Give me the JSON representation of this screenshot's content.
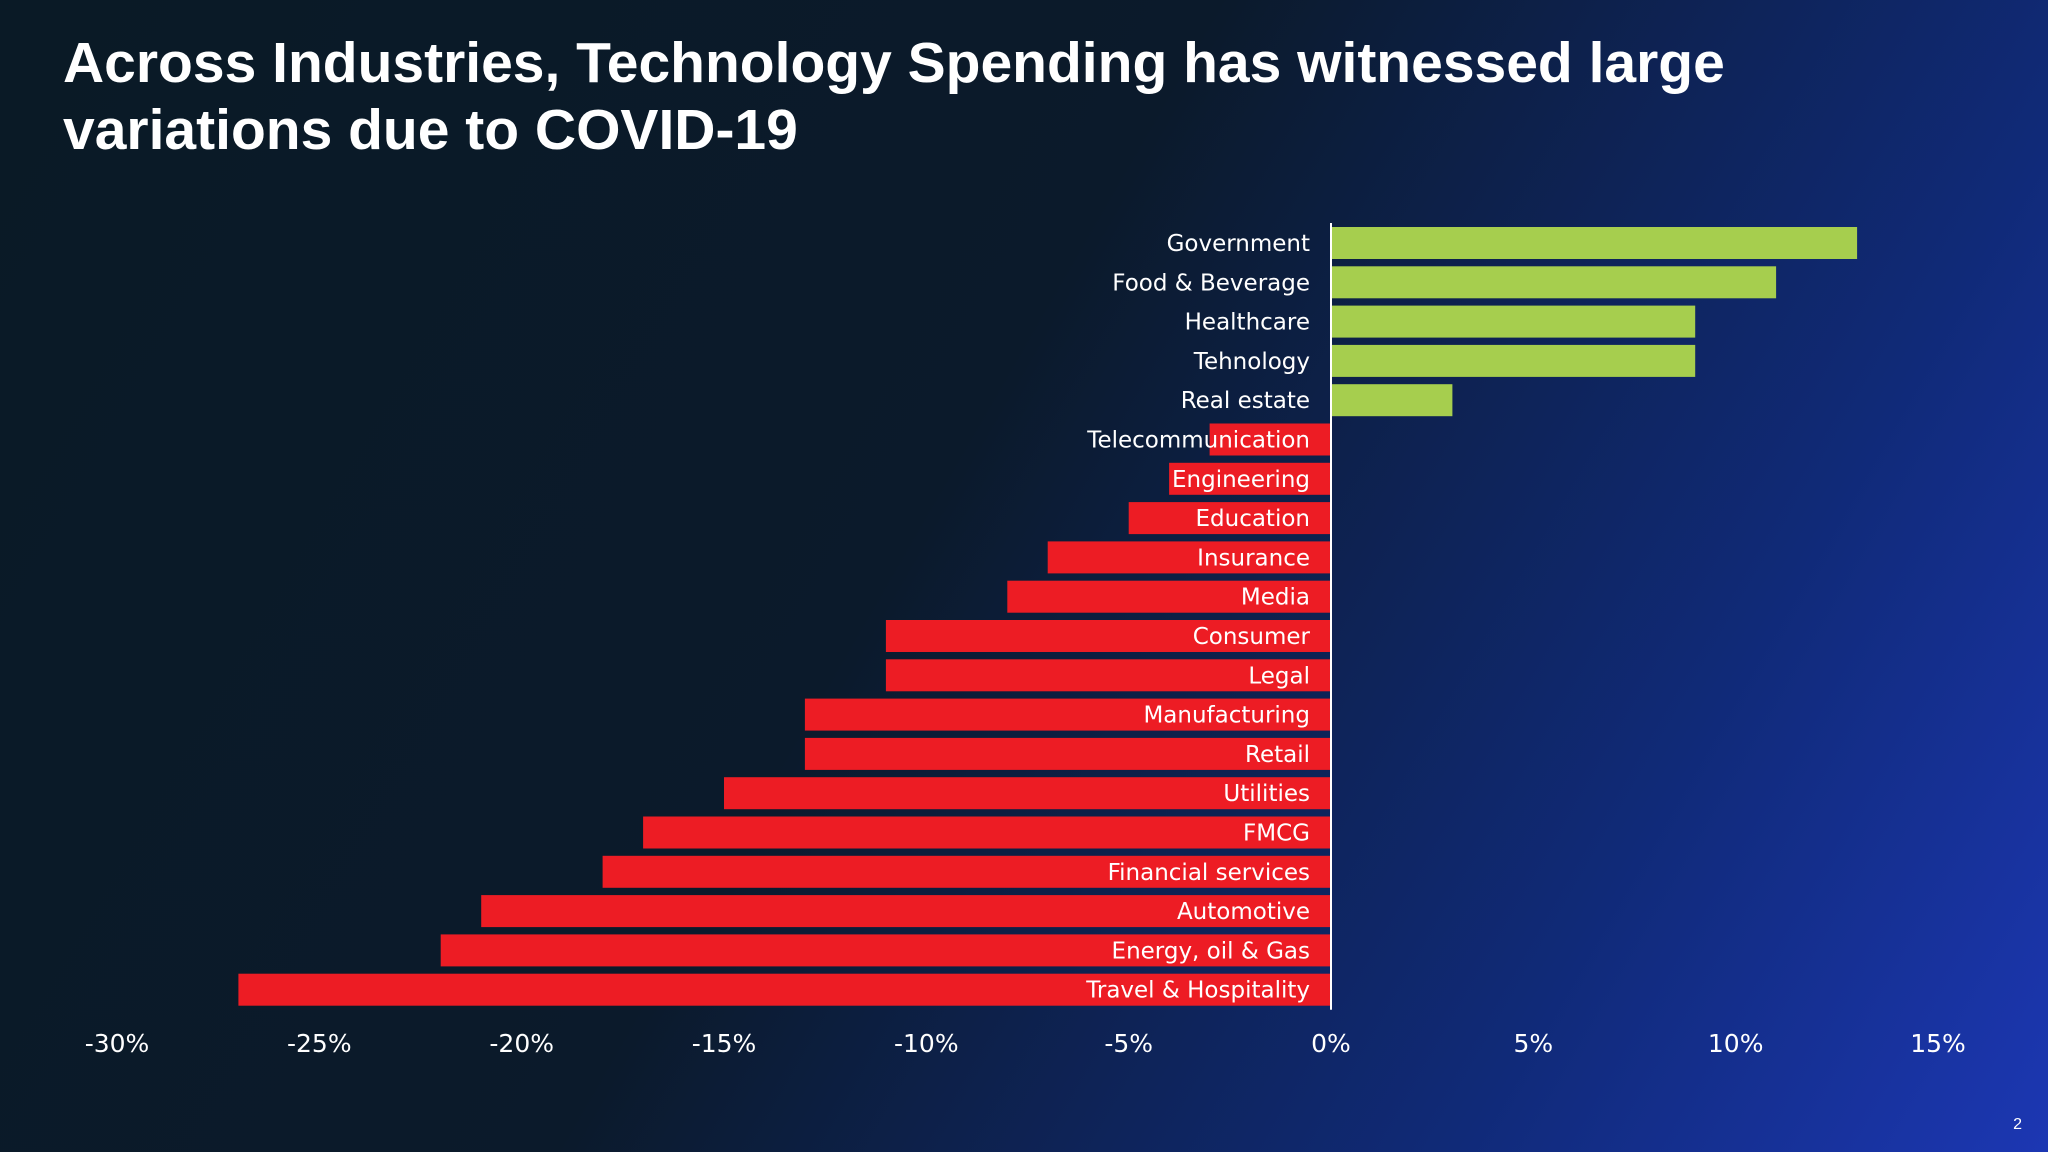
{
  "slide": {
    "title": "Across Industries, Technology Spending has witnessed large variations due to COVID-19",
    "page_number": "2"
  },
  "colors": {
    "positive": "#a6ce4e",
    "negative": "#ed1c24",
    "axis_line": "#ffffff",
    "text": "#ffffff"
  },
  "chart_data": {
    "type": "bar",
    "orientation": "horizontal",
    "title": "",
    "xlabel": "",
    "ylabel": "",
    "xlim": [
      -0.3,
      0.15
    ],
    "xticks": [
      -0.3,
      -0.25,
      -0.2,
      -0.15,
      -0.1,
      -0.05,
      0,
      0.05,
      0.1,
      0.15
    ],
    "xtick_labels": [
      "-30%",
      "-25%",
      "-20%",
      "-15%",
      "-10%",
      "-5%",
      "0%",
      "5%",
      "10%",
      "15%"
    ],
    "grid": false,
    "legend": "none",
    "categories": [
      "Government",
      "Food & Beverage",
      "Healthcare",
      "Tehnology",
      "Real estate",
      "Telecommunication",
      "Engineering",
      "Education",
      "Insurance",
      "Media",
      "Consumer",
      "Legal",
      "Manufacturing",
      "Retail",
      "Utilities",
      "FMCG",
      "Financial services",
      "Automotive",
      "Energy, oil & Gas",
      "Travel & Hospitality"
    ],
    "values": [
      0.13,
      0.11,
      0.09,
      0.09,
      0.03,
      -0.03,
      -0.04,
      -0.05,
      -0.07,
      -0.08,
      -0.11,
      -0.11,
      -0.13,
      -0.13,
      -0.15,
      -0.17,
      -0.18,
      -0.21,
      -0.22,
      -0.27
    ]
  }
}
